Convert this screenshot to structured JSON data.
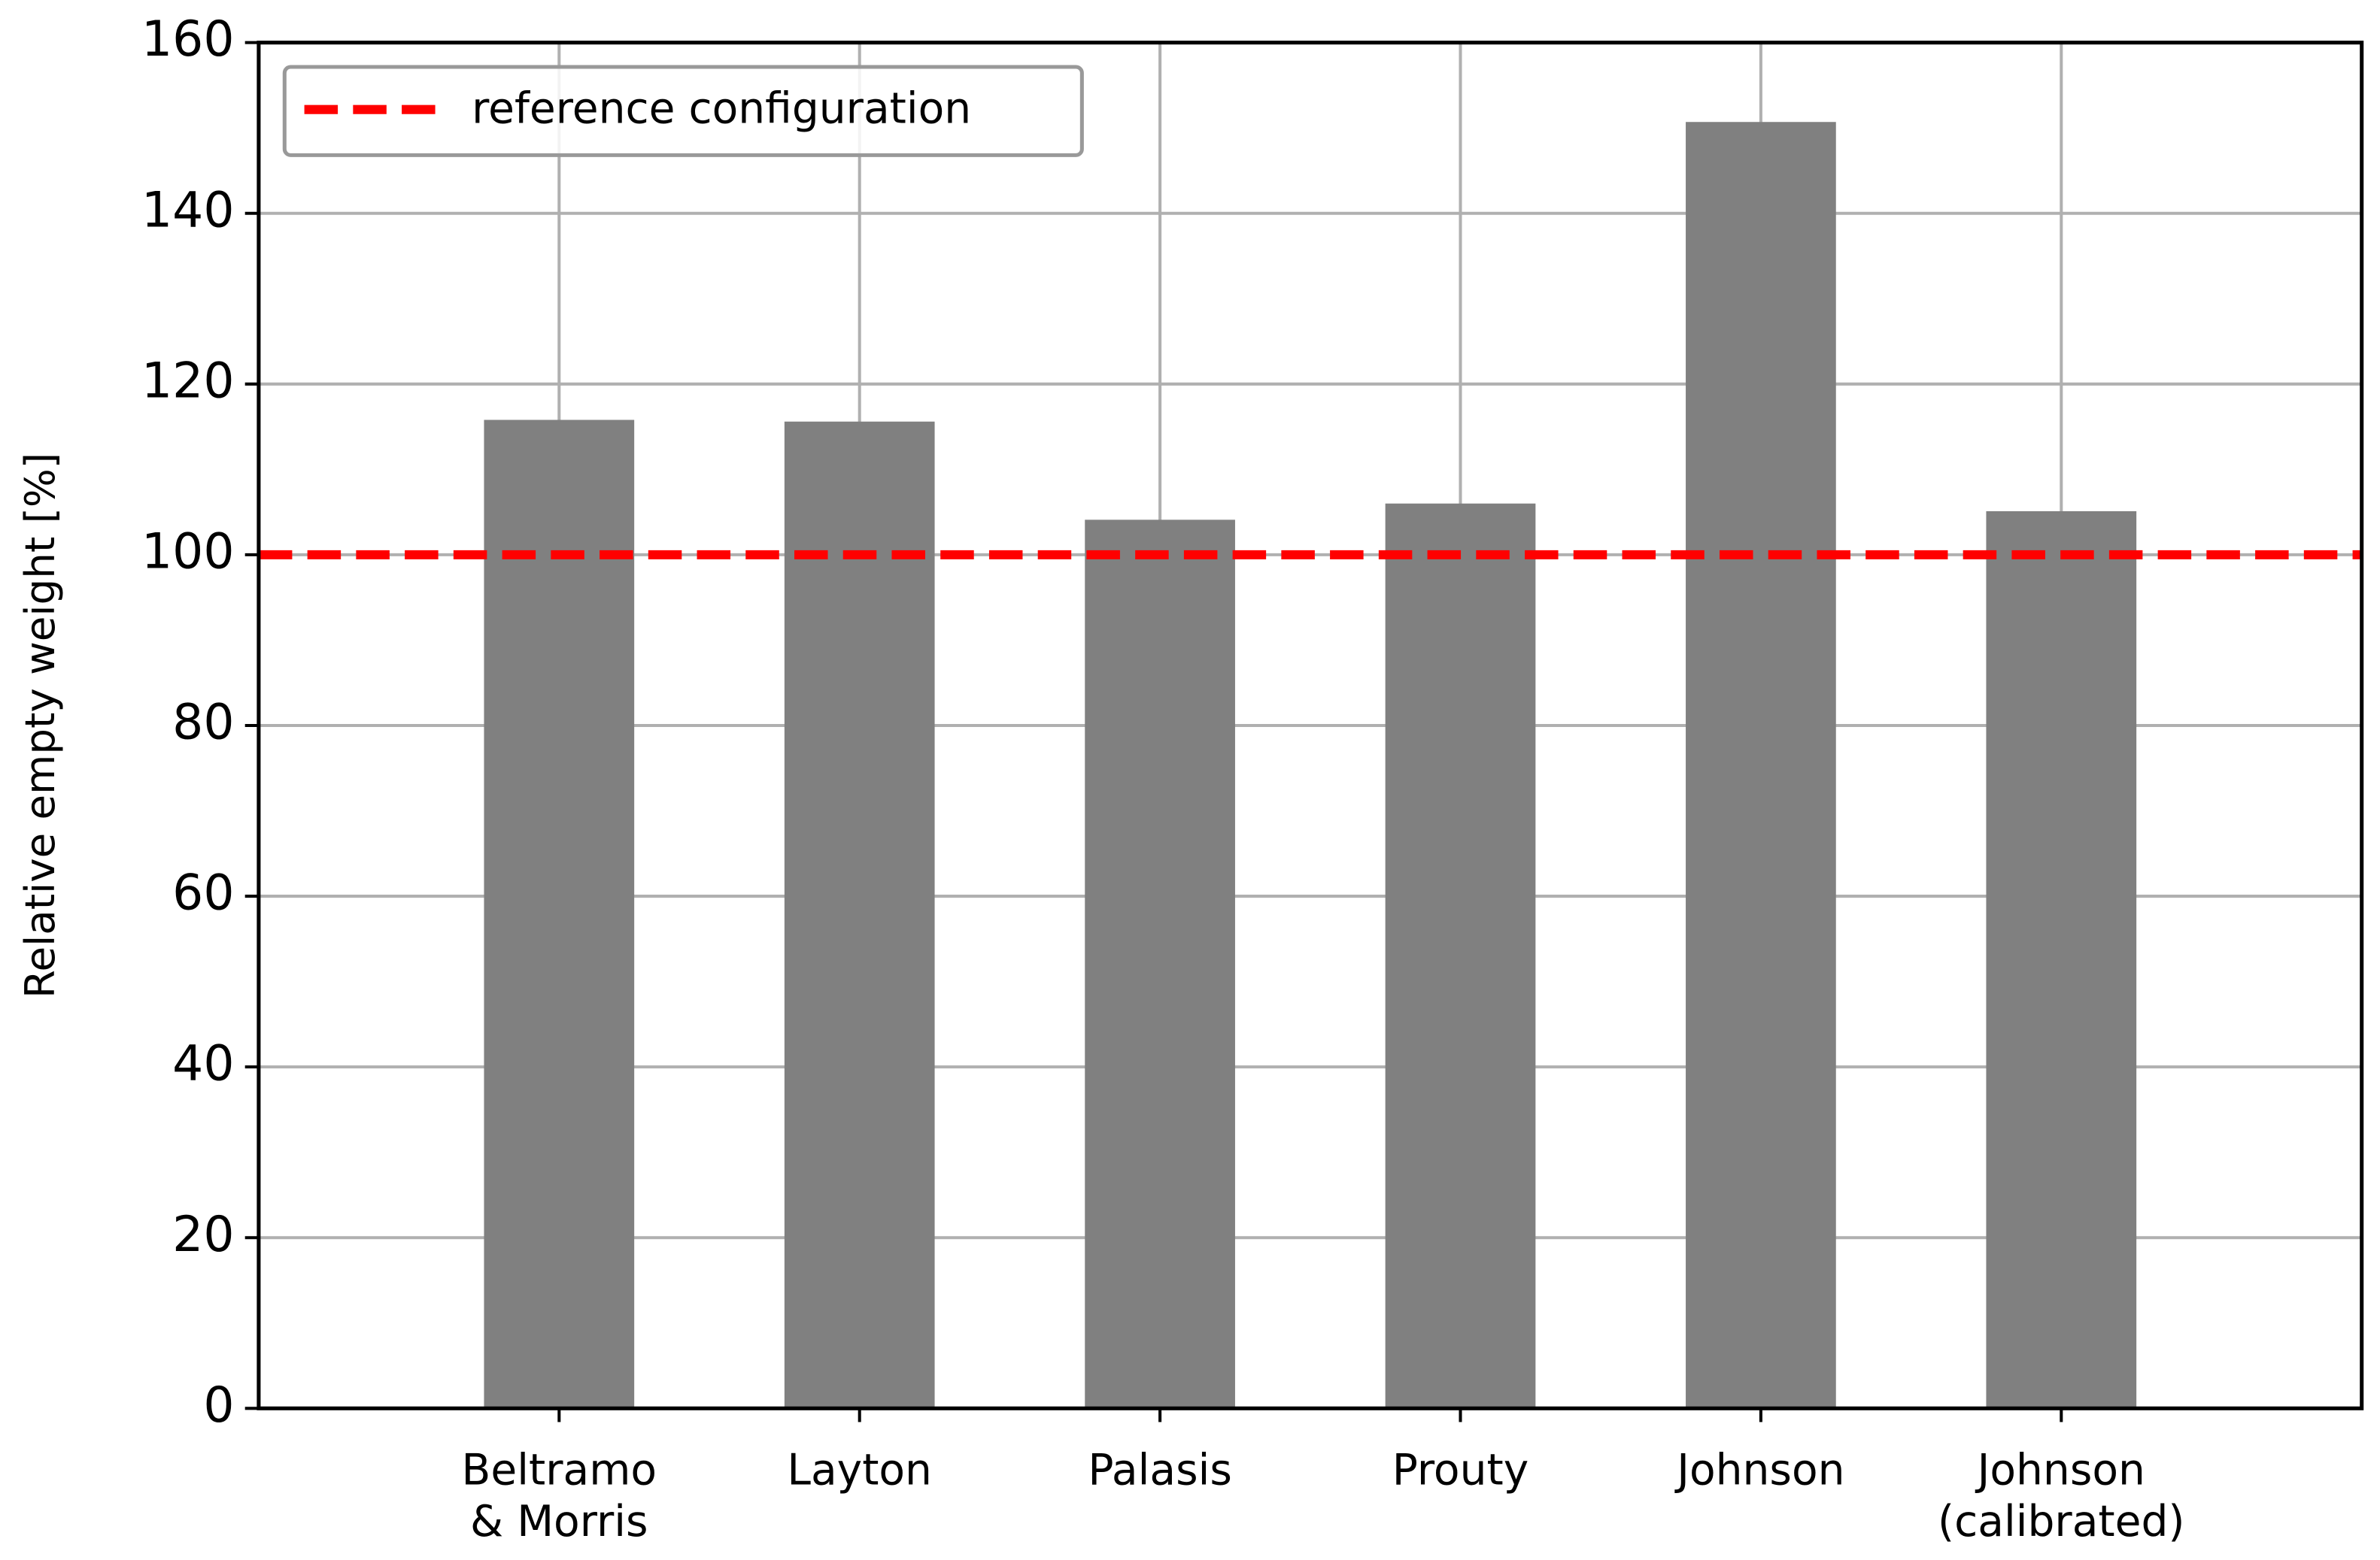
{
  "chart_data": {
    "type": "bar",
    "y_label": "Relative empty weight [%]",
    "categories": [
      "Beltramo\n& Morris",
      "Layton",
      "Palasis",
      "Prouty",
      "Johnson",
      "Johnson\n(calibrated)"
    ],
    "values": [
      115.8,
      115.6,
      104.1,
      106,
      150.7,
      105.1
    ],
    "color": "#808080",
    "ylim": [
      0,
      160
    ],
    "yticks": [
      0,
      20,
      40,
      60,
      80,
      100,
      120,
      140,
      160
    ],
    "grid": true,
    "reference_line": {
      "value": 100,
      "label": "reference configuration",
      "color": "#ff0000"
    },
    "legend": "upper left"
  }
}
